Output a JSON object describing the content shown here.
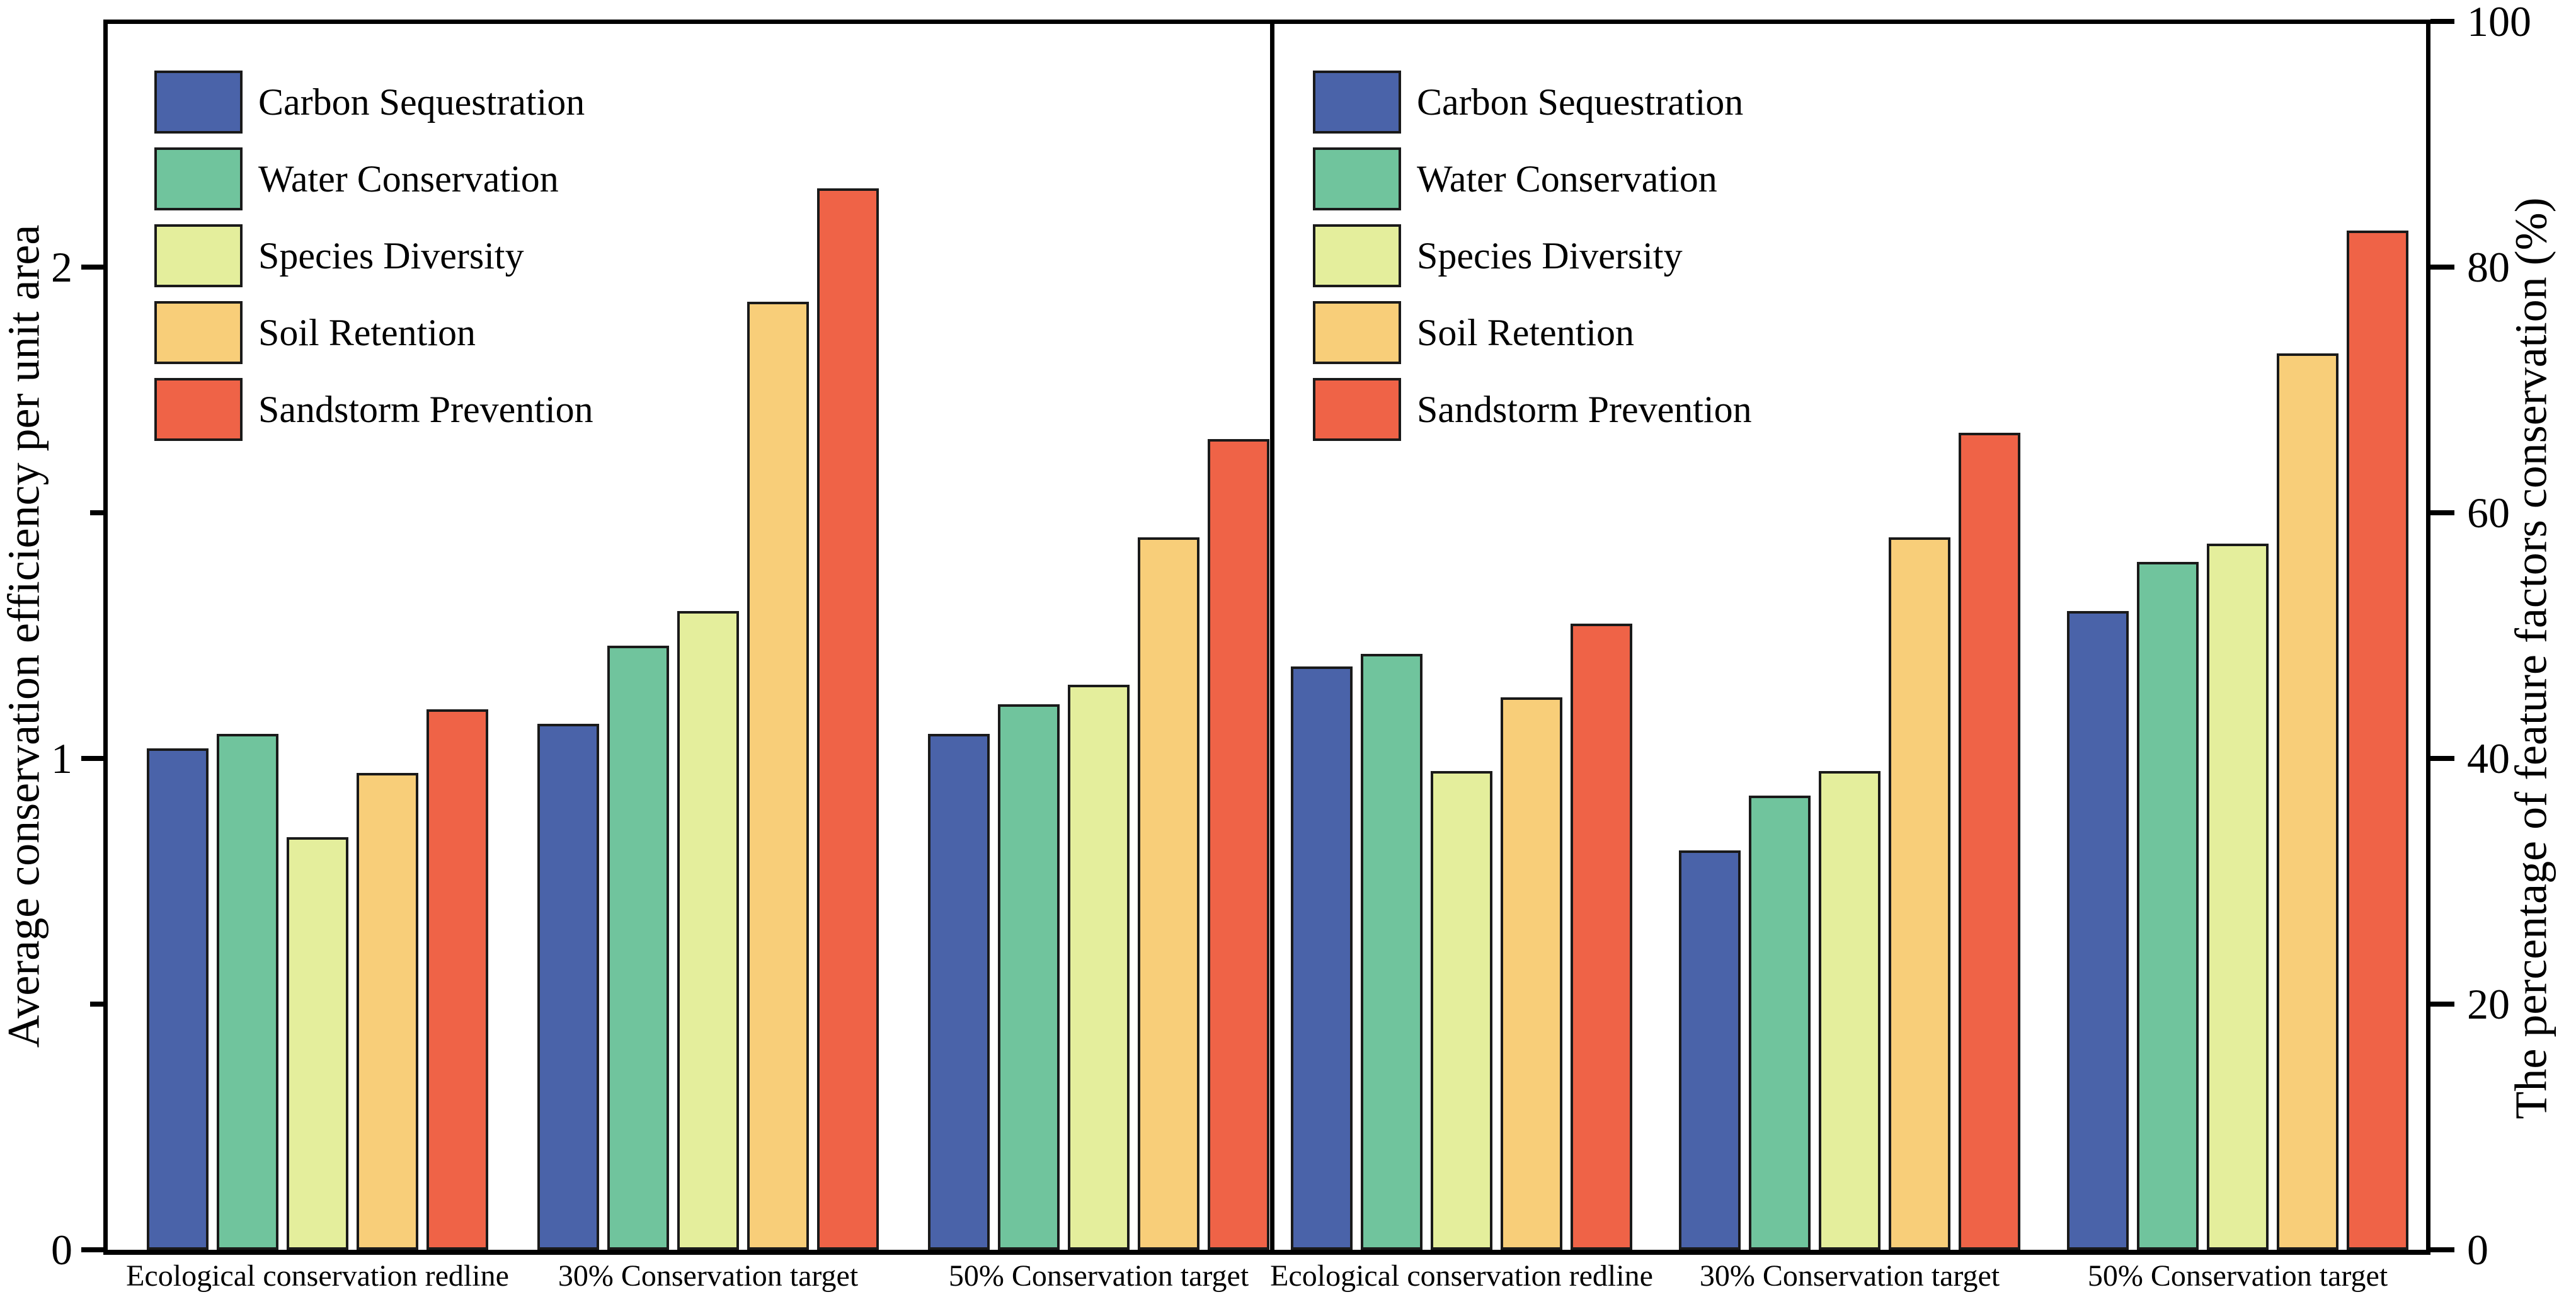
{
  "figure": {
    "background": "#ffffff",
    "axis_color": "#000000",
    "bar_edge_color": "#1a1a1a"
  },
  "chart_data": [
    {
      "type": "bar",
      "panel": "left",
      "title": "",
      "ylabel": "Average conservation efficiency per unit area",
      "ylim": [
        0,
        2.5
      ],
      "yticks": [
        0,
        1,
        2
      ],
      "yticks_minor": [
        0.5,
        1.5
      ],
      "grid": false,
      "legend_position": "upper-left",
      "categories": [
        "Ecological conservation redline",
        "30% Conservation target",
        "50% Conservation target"
      ],
      "series": [
        {
          "name": "Carbon Sequestration",
          "color": "#4A63A9",
          "values": [
            1.02,
            1.07,
            1.05
          ]
        },
        {
          "name": "Water Conservation",
          "color": "#70C49D",
          "values": [
            1.05,
            1.23,
            1.11
          ]
        },
        {
          "name": "Species Diversity",
          "color": "#E4EE9C",
          "values": [
            0.84,
            1.3,
            1.15
          ]
        },
        {
          "name": "Soil Retention",
          "color": "#F8CE79",
          "values": [
            0.97,
            1.93,
            1.45
          ]
        },
        {
          "name": "Sandstorm Prevention",
          "color": "#EF6347",
          "values": [
            1.1,
            2.16,
            1.65
          ]
        }
      ]
    },
    {
      "type": "bar",
      "panel": "right",
      "title": "",
      "ylabel": "The  percentage of feature factors conservation (%)",
      "ylim": [
        0,
        100
      ],
      "yticks": [
        0,
        20,
        40,
        60,
        80,
        100
      ],
      "yticks_minor": [],
      "grid": false,
      "legend_position": "upper-left",
      "categories": [
        "Ecological conservation redline",
        "30% Conservation target",
        "50% Conservation target"
      ],
      "series": [
        {
          "name": "Carbon Sequestration",
          "color": "#4A63A9",
          "values": [
            47.5,
            32.5,
            52
          ]
        },
        {
          "name": "Water Conservation",
          "color": "#70C49D",
          "values": [
            48.5,
            37,
            56
          ]
        },
        {
          "name": "Species Diversity",
          "color": "#E4EE9C",
          "values": [
            39,
            39,
            57.5
          ]
        },
        {
          "name": "Soil Retention",
          "color": "#F8CE79",
          "values": [
            45,
            58,
            73
          ]
        },
        {
          "name": "Sandstorm Prevention",
          "color": "#EF6347",
          "values": [
            51,
            66.5,
            83
          ]
        }
      ]
    }
  ]
}
